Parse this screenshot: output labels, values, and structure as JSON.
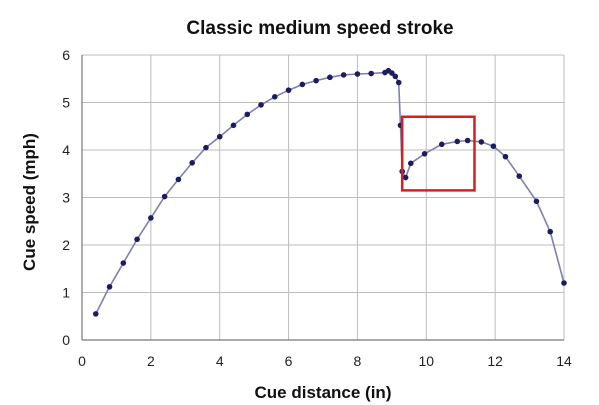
{
  "chart_data": {
    "type": "line",
    "title": "Classic medium speed stroke",
    "xlabel": "Cue distance (in)",
    "ylabel": "Cue speed (mph)",
    "xlim": [
      0,
      14
    ],
    "ylim": [
      0,
      6
    ],
    "xticks": [
      "0",
      "2",
      "4",
      "6",
      "8",
      "10",
      "12",
      "14"
    ],
    "yticks": [
      "0",
      "1",
      "2",
      "3",
      "4",
      "5",
      "6"
    ],
    "grid": true,
    "line_color": "#7f7fb0",
    "marker_color": "#1c1c5e",
    "highlight_color": "#d42020",
    "series": [
      {
        "values": [
          [
            0.4,
            0.55
          ],
          [
            0.8,
            1.12
          ],
          [
            1.2,
            1.62
          ],
          [
            1.6,
            2.12
          ],
          [
            2.0,
            2.57
          ],
          [
            2.4,
            3.02
          ],
          [
            2.8,
            3.38
          ],
          [
            3.2,
            3.73
          ],
          [
            3.6,
            4.05
          ],
          [
            4.0,
            4.28
          ],
          [
            4.4,
            4.52
          ],
          [
            4.8,
            4.75
          ],
          [
            5.2,
            4.95
          ],
          [
            5.6,
            5.12
          ],
          [
            6.0,
            5.26
          ],
          [
            6.4,
            5.38
          ],
          [
            6.8,
            5.46
          ],
          [
            7.2,
            5.53
          ],
          [
            7.6,
            5.58
          ],
          [
            8.0,
            5.6
          ],
          [
            8.4,
            5.61
          ],
          [
            8.8,
            5.63
          ],
          [
            8.9,
            5.67
          ],
          [
            9.0,
            5.62
          ],
          [
            9.1,
            5.55
          ],
          [
            9.2,
            5.42
          ],
          [
            9.25,
            4.52
          ],
          [
            9.3,
            3.55
          ],
          [
            9.4,
            3.42
          ],
          [
            9.55,
            3.72
          ],
          [
            9.95,
            3.92
          ],
          [
            10.45,
            4.12
          ],
          [
            10.9,
            4.18
          ],
          [
            11.2,
            4.2
          ],
          [
            11.6,
            4.17
          ],
          [
            11.95,
            4.08
          ],
          [
            12.3,
            3.86
          ],
          [
            12.7,
            3.45
          ],
          [
            13.2,
            2.92
          ],
          [
            13.6,
            2.28
          ],
          [
            14.0,
            1.2
          ]
        ]
      }
    ],
    "highlight_box": {
      "x": [
        9.3,
        11.4
      ],
      "y": [
        3.15,
        4.7
      ]
    }
  }
}
